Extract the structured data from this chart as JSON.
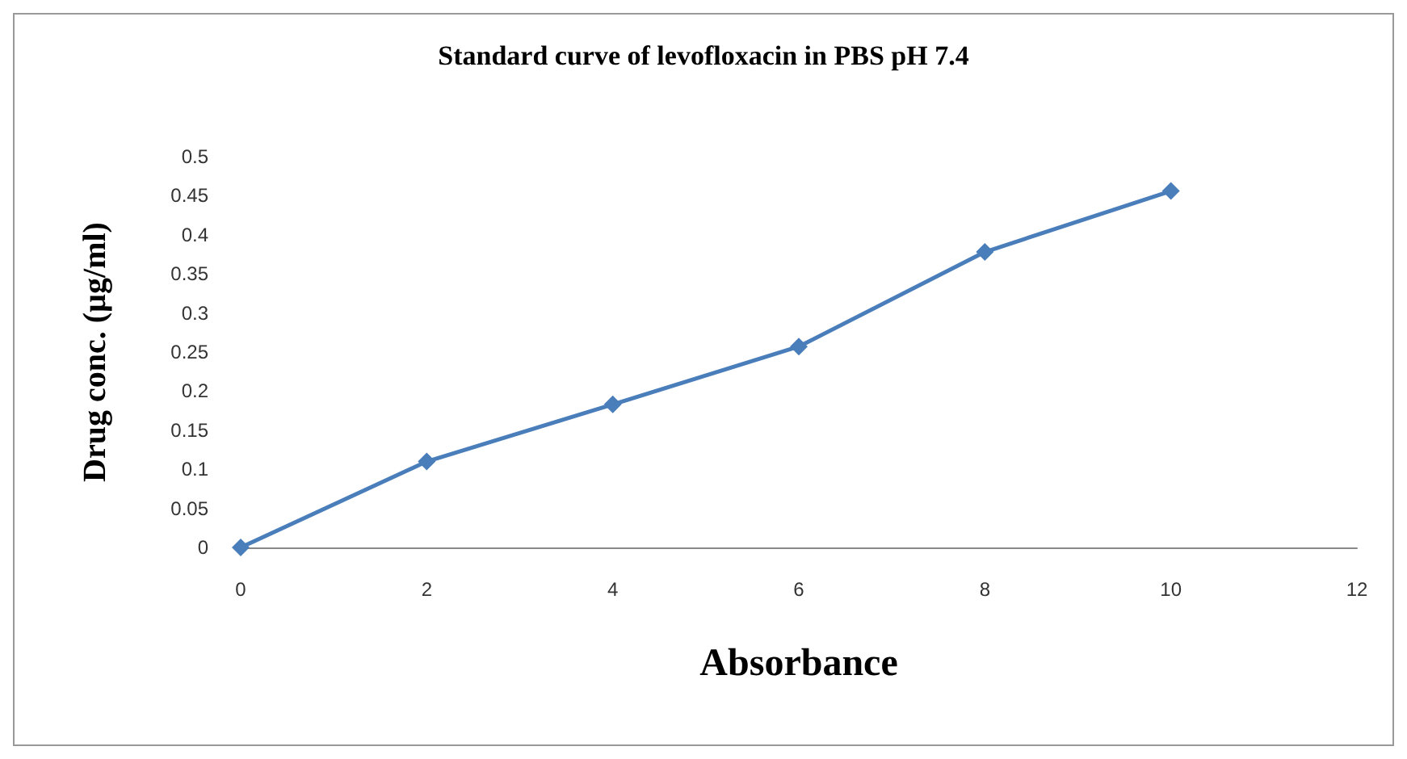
{
  "chart_data": {
    "type": "line",
    "title": "Standard curve of levofloxacin in PBS pH 7.4",
    "xlabel": "Absorbance",
    "ylabel": "Drug conc. (µg/ml)",
    "x": [
      0,
      2,
      4,
      6,
      8,
      10
    ],
    "series": [
      {
        "color": "#4a7ebb",
        "values": [
          0,
          0.11,
          0.183,
          0.257,
          0.378,
          0.456
        ]
      }
    ],
    "xlim": [
      0,
      12
    ],
    "xticks": [
      0,
      2,
      4,
      6,
      8,
      10,
      12
    ],
    "ylim": [
      0,
      0.5
    ],
    "yticks": [
      0,
      0.05,
      0.1,
      0.15,
      0.2,
      0.25,
      0.3,
      0.35,
      0.4,
      0.45,
      0.5
    ],
    "grid": false,
    "marker": "diamond",
    "line_style": "solid"
  }
}
